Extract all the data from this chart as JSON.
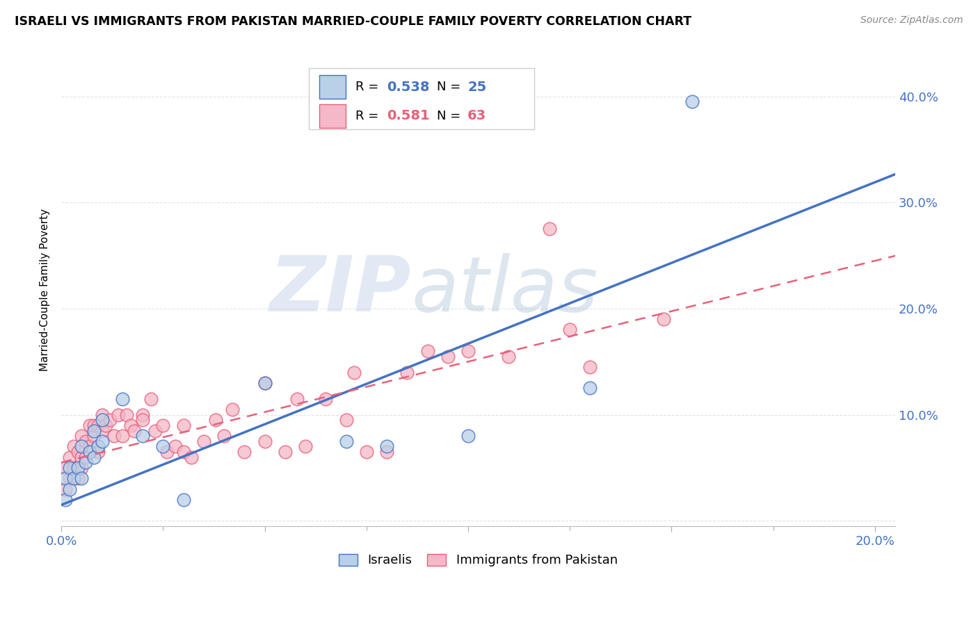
{
  "title": "ISRAELI VS IMMIGRANTS FROM PAKISTAN MARRIED-COUPLE FAMILY POVERTY CORRELATION CHART",
  "source": "Source: ZipAtlas.com",
  "ylabel": "Married-Couple Family Poverty",
  "xlim": [
    0.0,
    0.205
  ],
  "ylim": [
    -0.005,
    0.44
  ],
  "yticks": [
    0.0,
    0.1,
    0.2,
    0.3,
    0.4
  ],
  "ytick_labels": [
    "",
    "10.0%",
    "20.0%",
    "30.0%",
    "40.0%"
  ],
  "israeli_R": 0.538,
  "israeli_N": 25,
  "pakistan_R": 0.581,
  "pakistan_N": 63,
  "israeli_color": "#b8d0e8",
  "pakistan_color": "#f4b8c8",
  "israeli_line_color": "#4472c4",
  "pakistan_line_color": "#e8607a",
  "israeli_x": [
    0.001,
    0.001,
    0.002,
    0.002,
    0.003,
    0.004,
    0.005,
    0.005,
    0.006,
    0.007,
    0.008,
    0.008,
    0.009,
    0.01,
    0.01,
    0.015,
    0.02,
    0.025,
    0.03,
    0.05,
    0.07,
    0.08,
    0.1,
    0.13,
    0.155
  ],
  "israeli_y": [
    0.02,
    0.04,
    0.03,
    0.05,
    0.04,
    0.05,
    0.04,
    0.07,
    0.055,
    0.065,
    0.06,
    0.085,
    0.07,
    0.075,
    0.095,
    0.115,
    0.08,
    0.07,
    0.02,
    0.13,
    0.075,
    0.07,
    0.08,
    0.125,
    0.395
  ],
  "pakistan_x": [
    0.001,
    0.001,
    0.002,
    0.002,
    0.003,
    0.003,
    0.004,
    0.004,
    0.005,
    0.005,
    0.005,
    0.006,
    0.006,
    0.007,
    0.007,
    0.008,
    0.008,
    0.009,
    0.009,
    0.01,
    0.01,
    0.011,
    0.012,
    0.013,
    0.014,
    0.015,
    0.016,
    0.017,
    0.018,
    0.02,
    0.02,
    0.022,
    0.023,
    0.025,
    0.026,
    0.028,
    0.03,
    0.03,
    0.032,
    0.035,
    0.038,
    0.04,
    0.042,
    0.045,
    0.05,
    0.05,
    0.055,
    0.058,
    0.06,
    0.065,
    0.07,
    0.072,
    0.075,
    0.08,
    0.085,
    0.09,
    0.095,
    0.1,
    0.11,
    0.12,
    0.125,
    0.13,
    0.148
  ],
  "pakistan_y": [
    0.03,
    0.05,
    0.04,
    0.06,
    0.05,
    0.07,
    0.04,
    0.065,
    0.05,
    0.06,
    0.08,
    0.06,
    0.075,
    0.07,
    0.09,
    0.08,
    0.09,
    0.065,
    0.09,
    0.085,
    0.1,
    0.09,
    0.095,
    0.08,
    0.1,
    0.08,
    0.1,
    0.09,
    0.085,
    0.1,
    0.095,
    0.115,
    0.085,
    0.09,
    0.065,
    0.07,
    0.09,
    0.065,
    0.06,
    0.075,
    0.095,
    0.08,
    0.105,
    0.065,
    0.13,
    0.075,
    0.065,
    0.115,
    0.07,
    0.115,
    0.095,
    0.14,
    0.065,
    0.065,
    0.14,
    0.16,
    0.155,
    0.16,
    0.155,
    0.275,
    0.18,
    0.145,
    0.19
  ],
  "isr_slope": 1.52,
  "isr_intercept": 0.015,
  "pak_slope": 0.95,
  "pak_intercept": 0.055,
  "watermark_zip": "ZIP",
  "watermark_atlas": "atlas",
  "background_color": "#ffffff",
  "grid_color": "#e0e4e8"
}
